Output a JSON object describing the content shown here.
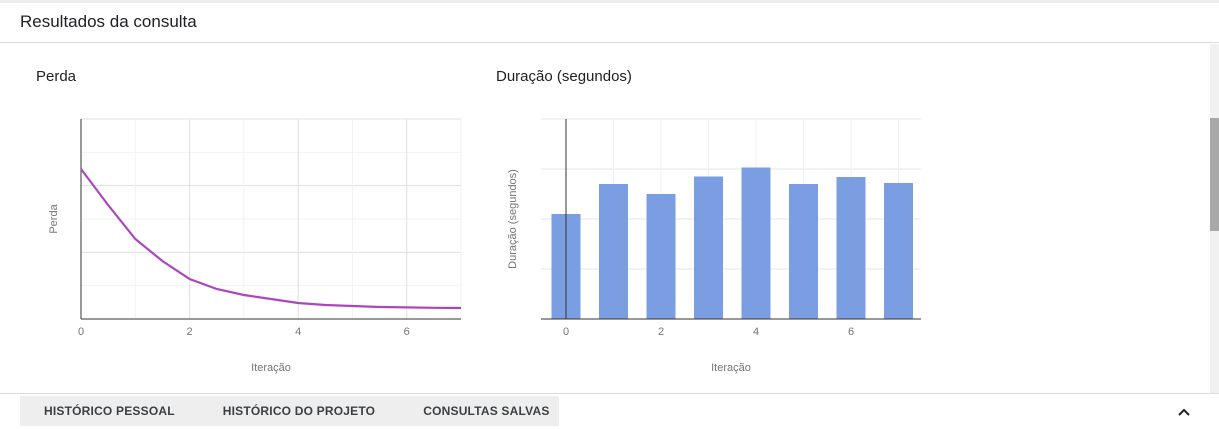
{
  "header": {
    "title": "Resultados da consulta"
  },
  "charts": [
    {
      "title": "Perda",
      "ylabel": "Perda",
      "xlabel": "Iteração"
    },
    {
      "title": "Duração (segundos)",
      "ylabel": "Duração (segundos)",
      "xlabel": "Iteração"
    }
  ],
  "chart_data": [
    {
      "type": "line",
      "title": "Perda",
      "xlabel": "Iteração",
      "ylabel": "Perda",
      "x_ticks": [
        "0",
        "2",
        "4",
        "6"
      ],
      "xlim": [
        0,
        7
      ],
      "ylim": [
        0,
        1
      ],
      "grid": true,
      "series": [
        {
          "color": "#ab47bc",
          "x": [
            0,
            0.5,
            1,
            1.5,
            2,
            2.5,
            3,
            3.5,
            4,
            4.5,
            5,
            5.5,
            6,
            6.5,
            7
          ],
          "y": [
            0.75,
            0.57,
            0.4,
            0.29,
            0.2,
            0.15,
            0.12,
            0.1,
            0.08,
            0.07,
            0.065,
            0.06,
            0.058,
            0.056,
            0.055
          ]
        }
      ]
    },
    {
      "type": "bar",
      "title": "Duração (segundos)",
      "xlabel": "Iteração",
      "ylabel": "Duração (segundos)",
      "x_ticks": [
        "0",
        "2",
        "4",
        "6"
      ],
      "categories": [
        "0",
        "1",
        "2",
        "3",
        "4",
        "5",
        "6",
        "7"
      ],
      "values": [
        2.1,
        2.7,
        2.5,
        2.85,
        3.03,
        2.7,
        2.84,
        2.72
      ],
      "ylim": [
        0,
        4
      ],
      "grid": true,
      "color": "#7b9de2"
    }
  ],
  "tabs": [
    "HISTÓRICO PESSOAL",
    "HISTÓRICO DO PROJETO",
    "CONSULTAS SALVAS"
  ],
  "icons": {
    "collapse": "chevron-up-icon"
  }
}
